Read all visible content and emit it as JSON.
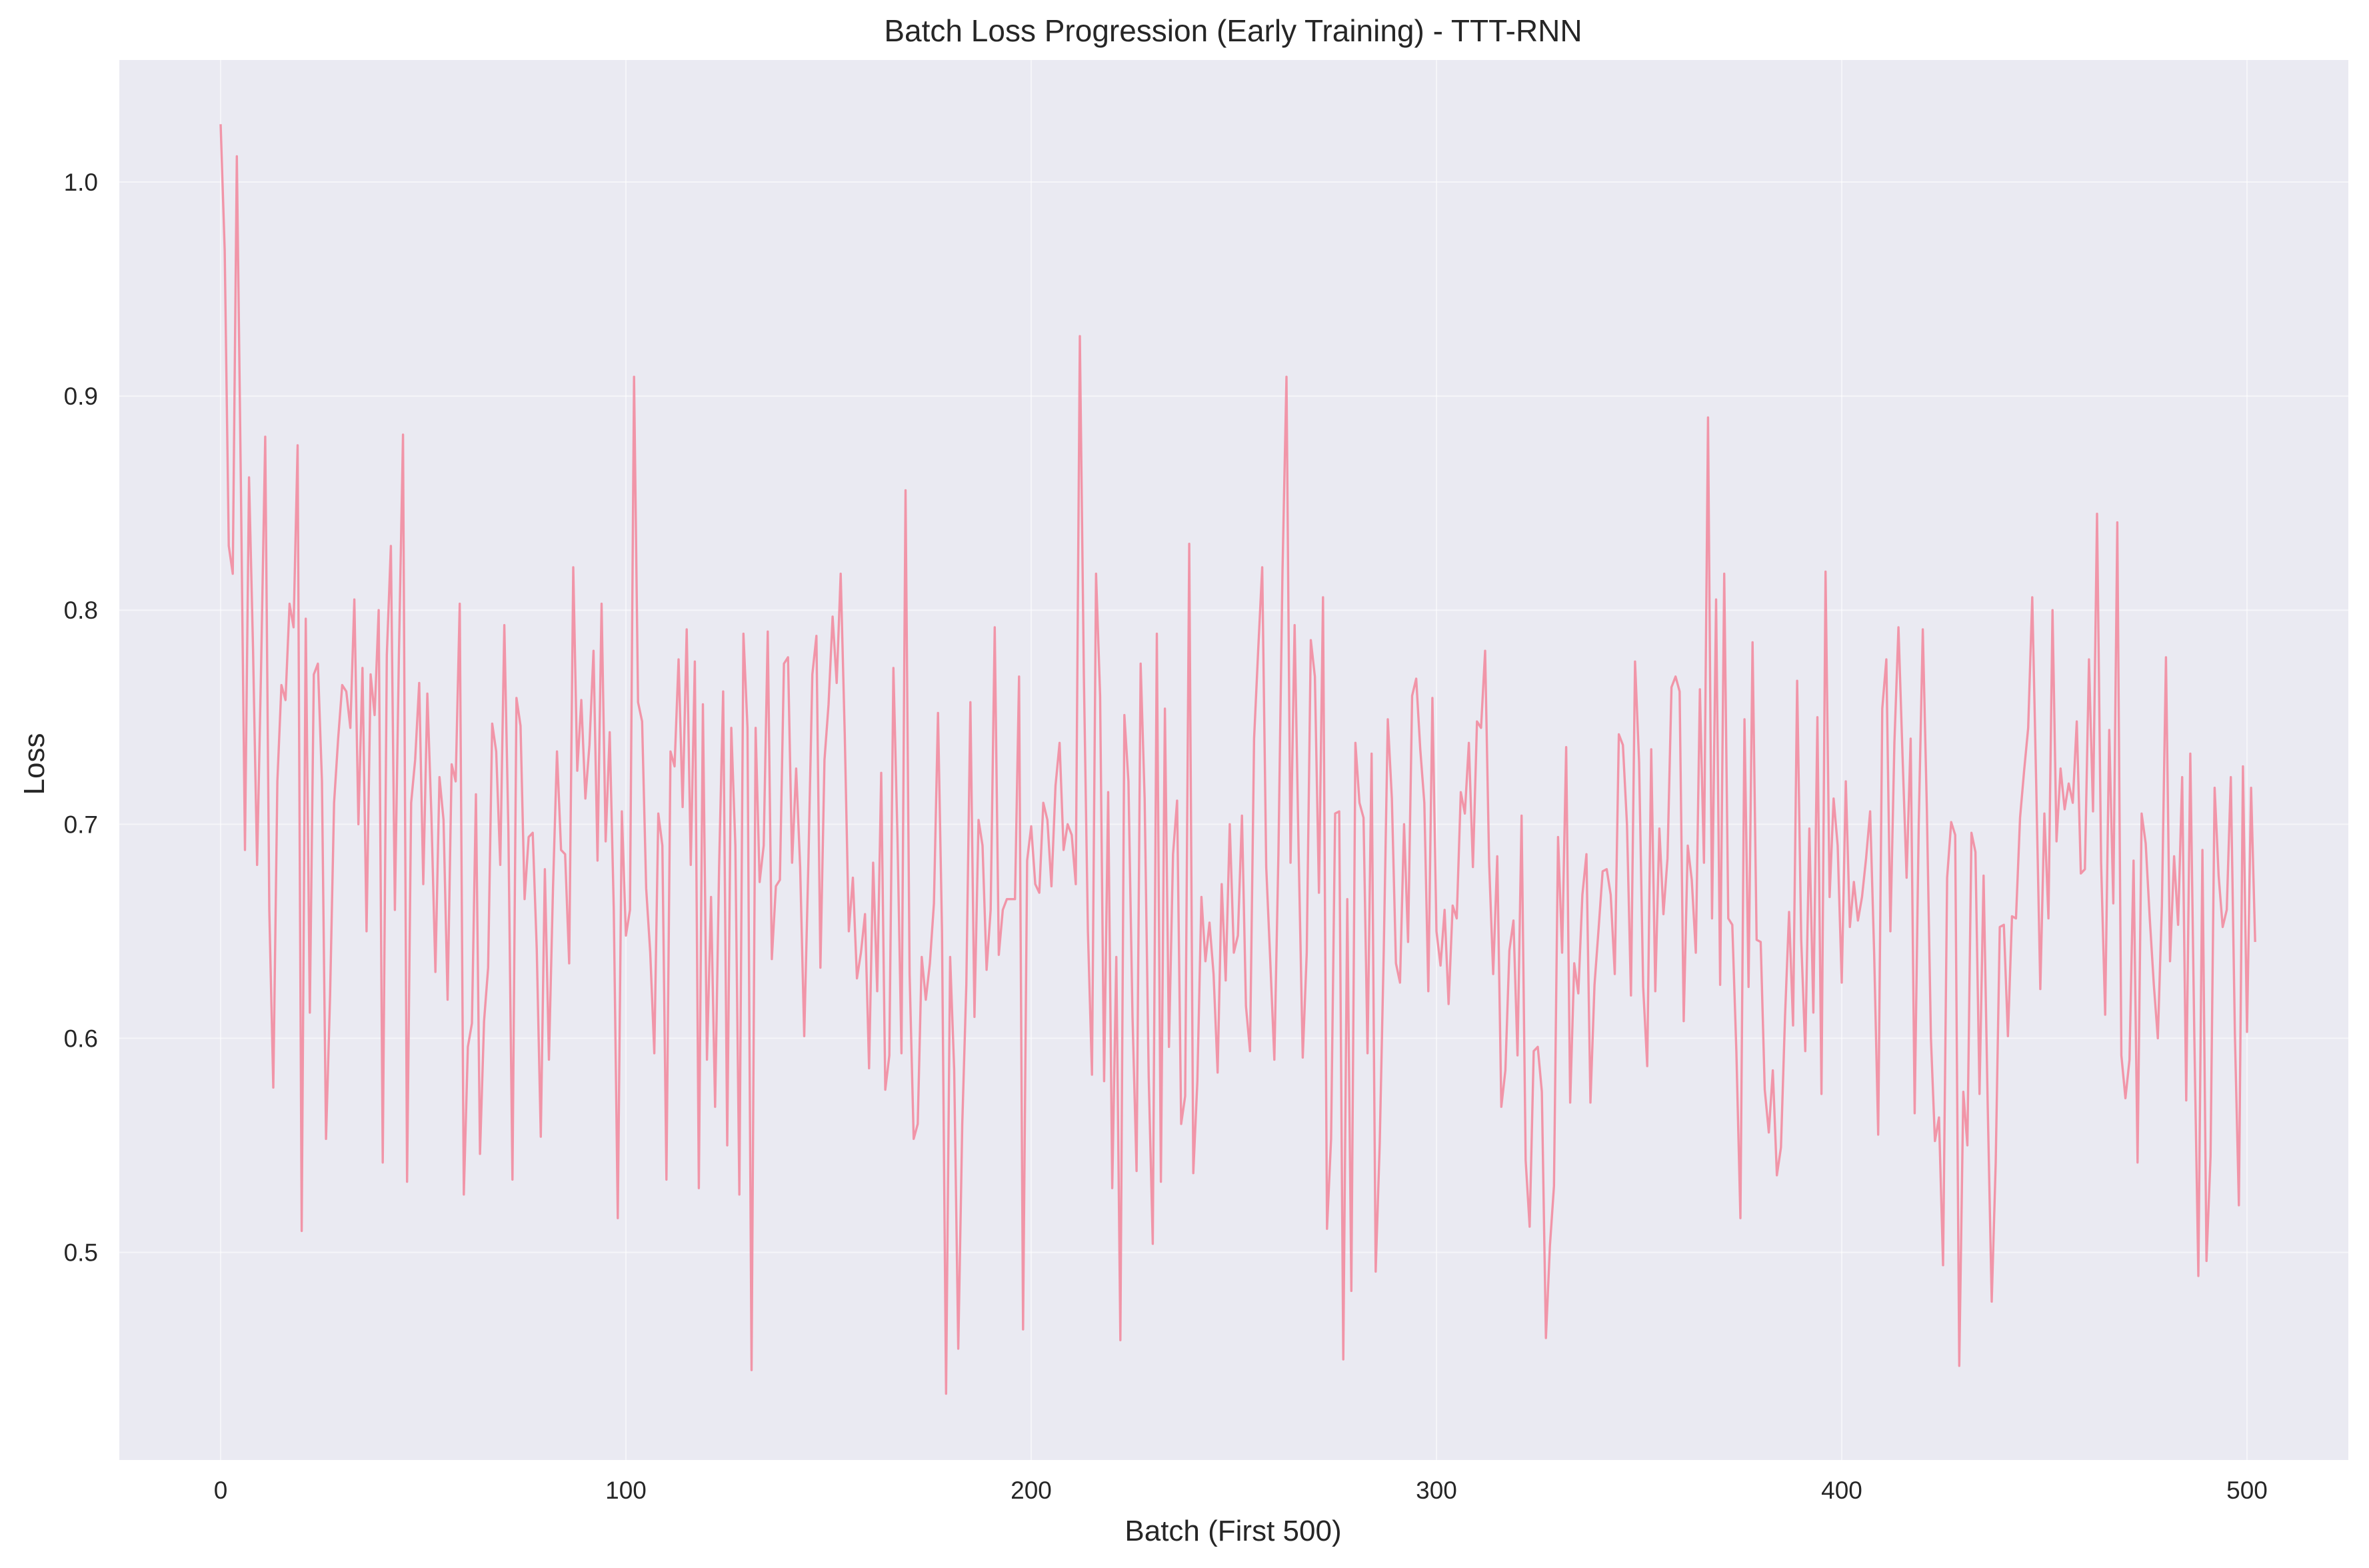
{
  "chart_data": {
    "type": "line",
    "title": "Batch Loss Progression (Early Training) - TTT-RNN",
    "xlabel": "Batch (First 500)",
    "ylabel": "Loss",
    "xlim": [
      -25,
      525
    ],
    "ylim": [
      0.403,
      1.057
    ],
    "xticks": [
      0,
      100,
      200,
      300,
      400,
      500
    ],
    "xtick_labels": [
      "0",
      "100",
      "200",
      "300",
      "400",
      "500"
    ],
    "yticks": [
      0.5,
      0.6,
      0.7,
      0.8,
      0.9,
      1.0
    ],
    "ytick_labels": [
      "0.5",
      "0.6",
      "0.7",
      "0.8",
      "0.9",
      "1.0"
    ],
    "grid": true,
    "background_color": "#eaeaf2",
    "line_color": "#f28ca0",
    "series": [
      {
        "name": "",
        "x_start": 0,
        "x_step": 1,
        "values": [
          1.027,
          0.968,
          0.83,
          0.817,
          1.012,
          0.858,
          0.688,
          0.862,
          0.782,
          0.681,
          0.775,
          0.881,
          0.66,
          0.577,
          0.72,
          0.765,
          0.758,
          0.803,
          0.792,
          0.877,
          0.51,
          0.796,
          0.612,
          0.77,
          0.775,
          0.72,
          0.553,
          0.62,
          0.71,
          0.74,
          0.765,
          0.762,
          0.745,
          0.805,
          0.7,
          0.773,
          0.65,
          0.77,
          0.751,
          0.8,
          0.542,
          0.779,
          0.83,
          0.66,
          0.78,
          0.882,
          0.533,
          0.71,
          0.73,
          0.766,
          0.672,
          0.761,
          0.704,
          0.631,
          0.722,
          0.702,
          0.618,
          0.728,
          0.72,
          0.803,
          0.527,
          0.596,
          0.607,
          0.714,
          0.546,
          0.608,
          0.633,
          0.747,
          0.734,
          0.681,
          0.793,
          0.697,
          0.534,
          0.759,
          0.746,
          0.665,
          0.694,
          0.696,
          0.642,
          0.554,
          0.679,
          0.59,
          0.67,
          0.734,
          0.688,
          0.686,
          0.635,
          0.82,
          0.725,
          0.758,
          0.712,
          0.737,
          0.781,
          0.683,
          0.803,
          0.692,
          0.743,
          0.66,
          0.516,
          0.706,
          0.648,
          0.66,
          0.909,
          0.757,
          0.748,
          0.67,
          0.64,
          0.593,
          0.705,
          0.69,
          0.534,
          0.734,
          0.727,
          0.777,
          0.708,
          0.791,
          0.681,
          0.776,
          0.53,
          0.756,
          0.59,
          0.666,
          0.568,
          0.68,
          0.762,
          0.55,
          0.745,
          0.69,
          0.527,
          0.789,
          0.745,
          0.445,
          0.745,
          0.673,
          0.69,
          0.79,
          0.637,
          0.671,
          0.674,
          0.775,
          0.778,
          0.682,
          0.726,
          0.68,
          0.601,
          0.68,
          0.77,
          0.788,
          0.633,
          0.73,
          0.756,
          0.797,
          0.766,
          0.817,
          0.742,
          0.65,
          0.675,
          0.628,
          0.64,
          0.658,
          0.586,
          0.682,
          0.622,
          0.724,
          0.576,
          0.592,
          0.773,
          0.694,
          0.593,
          0.856,
          0.63,
          0.553,
          0.56,
          0.638,
          0.618,
          0.635,
          0.663,
          0.752,
          0.65,
          0.434,
          0.638,
          0.585,
          0.455,
          0.56,
          0.625,
          0.757,
          0.61,
          0.702,
          0.69,
          0.632,
          0.66,
          0.792,
          0.639,
          0.66,
          0.665,
          0.665,
          0.665,
          0.769,
          0.464,
          0.683,
          0.699,
          0.672,
          0.668,
          0.71,
          0.702,
          0.671,
          0.718,
          0.738,
          0.688,
          0.7,
          0.695,
          0.672,
          0.928,
          0.77,
          0.65,
          0.583,
          0.817,
          0.76,
          0.58,
          0.715,
          0.53,
          0.638,
          0.459,
          0.751,
          0.72,
          0.61,
          0.538,
          0.775,
          0.712,
          0.582,
          0.504,
          0.789,
          0.533,
          0.754,
          0.596,
          0.686,
          0.711,
          0.56,
          0.573,
          0.831,
          0.537,
          0.58,
          0.666,
          0.636,
          0.654,
          0.63,
          0.584,
          0.672,
          0.627,
          0.7,
          0.64,
          0.648,
          0.704,
          0.615,
          0.594,
          0.74,
          0.781,
          0.82,
          0.68,
          0.636,
          0.59,
          0.686,
          0.818,
          0.909,
          0.682,
          0.793,
          0.686,
          0.591,
          0.64,
          0.786,
          0.769,
          0.668,
          0.806,
          0.511,
          0.553,
          0.705,
          0.706,
          0.45,
          0.665,
          0.482,
          0.738,
          0.71,
          0.703,
          0.593,
          0.733,
          0.491,
          0.551,
          0.642,
          0.749,
          0.712,
          0.635,
          0.626,
          0.7,
          0.645,
          0.76,
          0.768,
          0.735,
          0.71,
          0.622,
          0.759,
          0.65,
          0.634,
          0.66,
          0.616,
          0.662,
          0.656,
          0.715,
          0.705,
          0.738,
          0.68,
          0.748,
          0.745,
          0.781,
          0.682,
          0.63,
          0.685,
          0.568,
          0.585,
          0.641,
          0.655,
          0.592,
          0.704,
          0.543,
          0.512,
          0.594,
          0.596,
          0.575,
          0.46,
          0.503,
          0.531,
          0.694,
          0.64,
          0.736,
          0.57,
          0.635,
          0.621,
          0.667,
          0.686,
          0.57,
          0.625,
          0.651,
          0.678,
          0.679,
          0.667,
          0.63,
          0.742,
          0.737,
          0.7,
          0.62,
          0.776,
          0.729,
          0.624,
          0.587,
          0.735,
          0.622,
          0.698,
          0.658,
          0.684,
          0.764,
          0.769,
          0.762,
          0.608,
          0.69,
          0.674,
          0.64,
          0.763,
          0.682,
          0.89,
          0.656,
          0.805,
          0.625,
          0.817,
          0.656,
          0.653,
          0.594,
          0.516,
          0.749,
          0.624,
          0.785,
          0.646,
          0.645,
          0.576,
          0.556,
          0.585,
          0.536,
          0.549,
          0.61,
          0.659,
          0.606,
          0.767,
          0.646,
          0.594,
          0.698,
          0.612,
          0.75,
          0.574,
          0.818,
          0.666,
          0.712,
          0.69,
          0.626,
          0.72,
          0.652,
          0.673,
          0.655,
          0.666,
          0.684,
          0.706,
          0.64,
          0.555,
          0.754,
          0.777,
          0.65,
          0.738,
          0.792,
          0.732,
          0.675,
          0.74,
          0.565,
          0.7,
          0.791,
          0.707,
          0.6,
          0.552,
          0.563,
          0.494,
          0.675,
          0.701,
          0.695,
          0.447,
          0.575,
          0.55,
          0.696,
          0.687,
          0.574,
          0.676,
          0.57,
          0.477,
          0.542,
          0.652,
          0.653,
          0.601,
          0.657,
          0.656,
          0.703,
          0.725,
          0.745,
          0.806,
          0.718,
          0.623,
          0.705,
          0.656,
          0.8,
          0.692,
          0.726,
          0.707,
          0.719,
          0.71,
          0.748,
          0.677,
          0.679,
          0.777,
          0.706,
          0.845,
          0.682,
          0.611,
          0.744,
          0.663,
          0.841,
          0.592,
          0.572,
          0.59,
          0.683,
          0.542,
          0.705,
          0.691,
          0.656,
          0.625,
          0.6,
          0.662,
          0.778,
          0.636,
          0.685,
          0.653,
          0.722,
          0.571,
          0.733,
          0.6,
          0.489,
          0.688,
          0.496,
          0.545,
          0.717,
          0.676,
          0.652,
          0.66,
          0.722,
          0.602,
          0.522,
          0.727,
          0.603,
          0.717,
          0.645
        ]
      }
    ]
  }
}
